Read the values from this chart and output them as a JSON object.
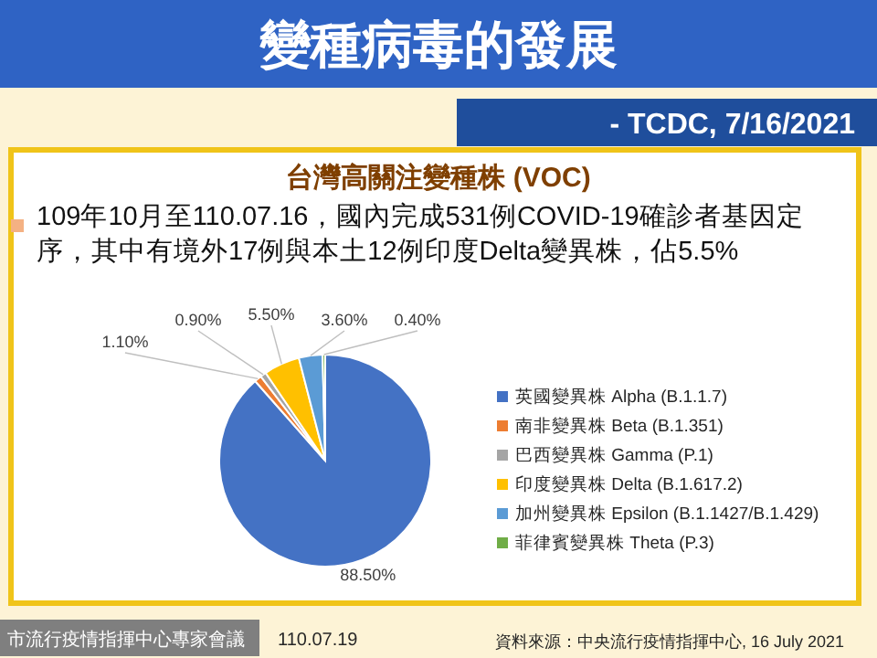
{
  "chart_data": {
    "type": "pie",
    "title": "變種病毒的發展",
    "subtitle": "- TCDC, 7/16/2021",
    "annotations": [
      "台灣高關注變種株 (VOC)",
      "109年10月至110.07.16，國內完成531例COVID-19確診者基因定序，其中有境外17例與本土12例印度Delta變異株，佔5.5%",
      "市流行疫情指揮中心專家會議",
      "110.07.19",
      "資料來源：中央流行疫情指揮中心, 16 July 2021"
    ],
    "categories": [
      "英國變異株 Alpha (B.1.1.7)",
      "南非變異株 Beta (B.1.351)",
      "巴西變異株 Gamma (P.1)",
      "印度變異株 Delta (B.1.617.2)",
      "加州變異株 Epsilon (B.1.1427/B.1.429)",
      "菲律賓變異株 Theta (P.3)"
    ],
    "values": [
      88.5,
      1.1,
      0.9,
      5.5,
      3.6,
      0.4
    ],
    "colors": [
      "#4472c4",
      "#ed7d31",
      "#a5a5a5",
      "#ffc000",
      "#5b9bd5",
      "#70ad47"
    ],
    "value_labels": [
      "88.50%",
      "1.10%",
      "0.90%",
      "5.50%",
      "3.60%",
      "0.40%"
    ],
    "legend": "right"
  }
}
